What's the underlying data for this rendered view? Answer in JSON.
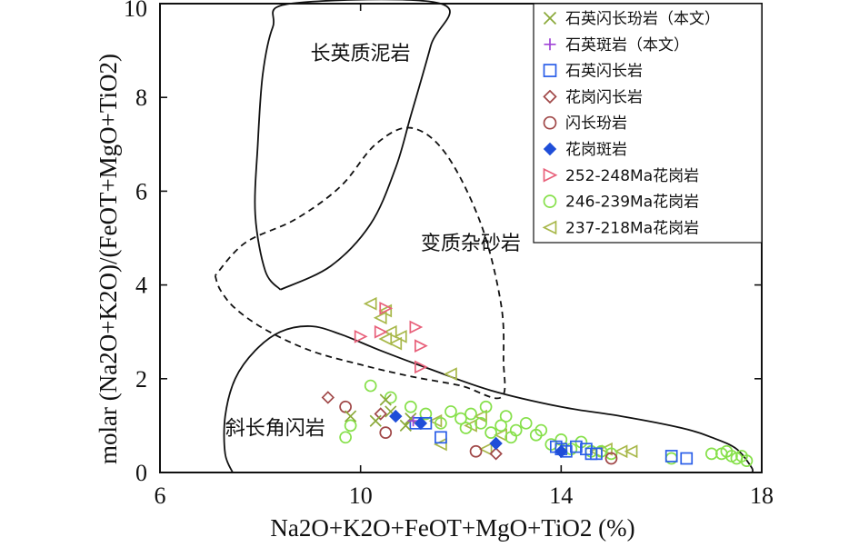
{
  "chart_data": {
    "type": "scatter",
    "title": "",
    "xlabel": "Na2O+K2O+FeOT+MgO+TiO2 (%)",
    "ylabel": "molar (Na2O+K2O)/(FeOT+MgO+TiO2)",
    "xlim": [
      6,
      18
    ],
    "ylim": [
      0,
      10
    ],
    "x_ticks": [
      "6",
      "10",
      "14",
      "18"
    ],
    "y_ticks": [
      "0",
      "2",
      "4",
      "6",
      "8",
      "10"
    ],
    "grid": false,
    "legend_position": "top-right",
    "regions": [
      {
        "name": "长英质泥岩",
        "label_at": [
          9.0,
          8.8
        ],
        "style": "solid",
        "boundary": [
          [
            8.4,
            3.9
          ],
          [
            8.1,
            4.3
          ],
          [
            7.9,
            5.5
          ],
          [
            7.95,
            7.0
          ],
          [
            8.05,
            8.5
          ],
          [
            8.25,
            9.5
          ],
          [
            8.6,
            10.0
          ],
          [
            11.6,
            10.0
          ],
          [
            11.4,
            9.1
          ],
          [
            11.0,
            7.6
          ],
          [
            10.7,
            6.5
          ],
          [
            10.2,
            5.3
          ],
          [
            9.4,
            4.4
          ],
          [
            8.4,
            3.9
          ]
        ]
      },
      {
        "name": "变质杂砂岩",
        "label_at": [
          11.2,
          4.75
        ],
        "style": "dashed",
        "boundary": [
          [
            7.1,
            4.2
          ],
          [
            7.2,
            3.9
          ],
          [
            7.5,
            3.5
          ],
          [
            8.1,
            3.05
          ],
          [
            9.0,
            2.6
          ],
          [
            10.0,
            2.3
          ],
          [
            11.0,
            2.05
          ],
          [
            12.0,
            1.85
          ],
          [
            12.8,
            1.6
          ],
          [
            12.85,
            2.4
          ],
          [
            12.8,
            3.6
          ],
          [
            12.4,
            5.3
          ],
          [
            11.7,
            6.8
          ],
          [
            11.0,
            7.35
          ],
          [
            10.3,
            7.0
          ],
          [
            9.6,
            6.1
          ],
          [
            8.7,
            5.4
          ],
          [
            7.7,
            4.9
          ],
          [
            7.1,
            4.2
          ]
        ]
      },
      {
        "name": "斜长角闪岩",
        "label_at": [
          7.3,
          0.8
        ],
        "style": "solid",
        "boundary": [
          [
            7.45,
            0.0
          ],
          [
            7.3,
            0.4
          ],
          [
            7.3,
            1.2
          ],
          [
            7.5,
            2.0
          ],
          [
            7.9,
            2.6
          ],
          [
            8.4,
            3.0
          ],
          [
            9.0,
            3.12
          ],
          [
            9.6,
            2.95
          ],
          [
            10.4,
            2.6
          ],
          [
            11.4,
            2.2
          ],
          [
            12.6,
            1.75
          ],
          [
            14.0,
            1.4
          ],
          [
            15.2,
            1.2
          ],
          [
            16.4,
            0.95
          ],
          [
            17.0,
            0.75
          ],
          [
            17.5,
            0.5
          ],
          [
            17.8,
            0.1
          ],
          [
            17.8,
            0.0
          ]
        ]
      }
    ],
    "series": [
      {
        "name": "石英闪长玢岩（本文）",
        "marker": "x",
        "color": "#8aa838",
        "points": [
          [
            9.8,
            1.2
          ],
          [
            10.3,
            1.1
          ],
          [
            10.5,
            1.55
          ],
          [
            10.6,
            1.3
          ],
          [
            10.9,
            1.0
          ],
          [
            11.0,
            1.15
          ]
        ]
      },
      {
        "name": "石英斑岩（本文）",
        "marker": "plus",
        "color": "#a044d6",
        "points": [
          [
            11.05,
            1.1
          ]
        ]
      },
      {
        "name": "石英闪长岩",
        "marker": "square",
        "color": "#2a5ee8",
        "points": [
          [
            11.1,
            1.05
          ],
          [
            11.3,
            1.05
          ],
          [
            11.6,
            0.75
          ],
          [
            13.9,
            0.55
          ],
          [
            14.0,
            0.5
          ],
          [
            14.1,
            0.45
          ],
          [
            14.3,
            0.55
          ],
          [
            14.5,
            0.5
          ],
          [
            14.6,
            0.4
          ],
          [
            14.7,
            0.4
          ],
          [
            16.2,
            0.35
          ],
          [
            16.5,
            0.3
          ]
        ]
      },
      {
        "name": "花岗闪长岩",
        "marker": "diamond",
        "color": "#a04848",
        "points": [
          [
            9.35,
            1.6
          ],
          [
            10.4,
            1.25
          ],
          [
            12.7,
            0.4
          ]
        ]
      },
      {
        "name": "闪长玢岩",
        "marker": "circle",
        "color": "#a04848",
        "points": [
          [
            9.7,
            1.4
          ],
          [
            10.5,
            0.85
          ],
          [
            12.3,
            0.45
          ],
          [
            15.0,
            0.3
          ]
        ]
      },
      {
        "name": "花岗斑岩",
        "marker": "filled-diamond",
        "color": "#1f4ed8",
        "points": [
          [
            10.7,
            1.2
          ],
          [
            11.2,
            1.05
          ],
          [
            12.7,
            0.62
          ],
          [
            14.0,
            0.45
          ]
        ]
      },
      {
        "name": "252-248Ma花岗岩",
        "marker": "triangle-right",
        "color": "#e8607a",
        "points": [
          [
            10.0,
            2.9
          ],
          [
            10.4,
            3.0
          ],
          [
            10.5,
            3.5
          ],
          [
            11.1,
            3.1
          ],
          [
            11.2,
            2.7
          ],
          [
            11.2,
            2.25
          ]
        ]
      },
      {
        "name": "246-239Ma花岗岩",
        "marker": "circle",
        "color": "#86e04a",
        "points": [
          [
            9.7,
            0.75
          ],
          [
            9.8,
            1.0
          ],
          [
            10.2,
            1.85
          ],
          [
            10.6,
            1.6
          ],
          [
            11.0,
            1.4
          ],
          [
            11.3,
            1.25
          ],
          [
            11.6,
            1.05
          ],
          [
            11.8,
            1.3
          ],
          [
            12.0,
            1.15
          ],
          [
            12.1,
            0.95
          ],
          [
            12.2,
            1.25
          ],
          [
            12.4,
            1.05
          ],
          [
            12.5,
            1.4
          ],
          [
            12.6,
            0.85
          ],
          [
            12.8,
            1.0
          ],
          [
            12.9,
            1.2
          ],
          [
            13.0,
            0.75
          ],
          [
            13.1,
            0.9
          ],
          [
            13.3,
            1.05
          ],
          [
            13.5,
            0.8
          ],
          [
            13.6,
            0.9
          ],
          [
            13.8,
            0.6
          ],
          [
            14.0,
            0.7
          ],
          [
            14.2,
            0.5
          ],
          [
            14.4,
            0.65
          ],
          [
            14.6,
            0.45
          ],
          [
            14.8,
            0.45
          ],
          [
            15.0,
            0.4
          ],
          [
            16.2,
            0.3
          ],
          [
            17.0,
            0.4
          ],
          [
            17.2,
            0.4
          ],
          [
            17.3,
            0.45
          ],
          [
            17.4,
            0.35
          ],
          [
            17.5,
            0.3
          ],
          [
            17.6,
            0.35
          ],
          [
            17.7,
            0.25
          ]
        ]
      },
      {
        "name": "237-218Ma花岗岩",
        "marker": "triangle-left",
        "color": "#a8b84a",
        "points": [
          [
            10.2,
            3.6
          ],
          [
            10.4,
            3.3
          ],
          [
            10.5,
            3.45
          ],
          [
            10.5,
            2.85
          ],
          [
            10.6,
            3.0
          ],
          [
            10.7,
            2.75
          ],
          [
            10.8,
            2.9
          ],
          [
            11.5,
            1.1
          ],
          [
            11.6,
            0.6
          ],
          [
            11.8,
            2.1
          ],
          [
            12.2,
            1.0
          ],
          [
            12.4,
            1.2
          ],
          [
            12.5,
            0.5
          ],
          [
            12.8,
            0.8
          ],
          [
            14.7,
            0.45
          ],
          [
            14.9,
            0.5
          ],
          [
            15.2,
            0.45
          ],
          [
            15.4,
            0.45
          ]
        ]
      }
    ]
  }
}
